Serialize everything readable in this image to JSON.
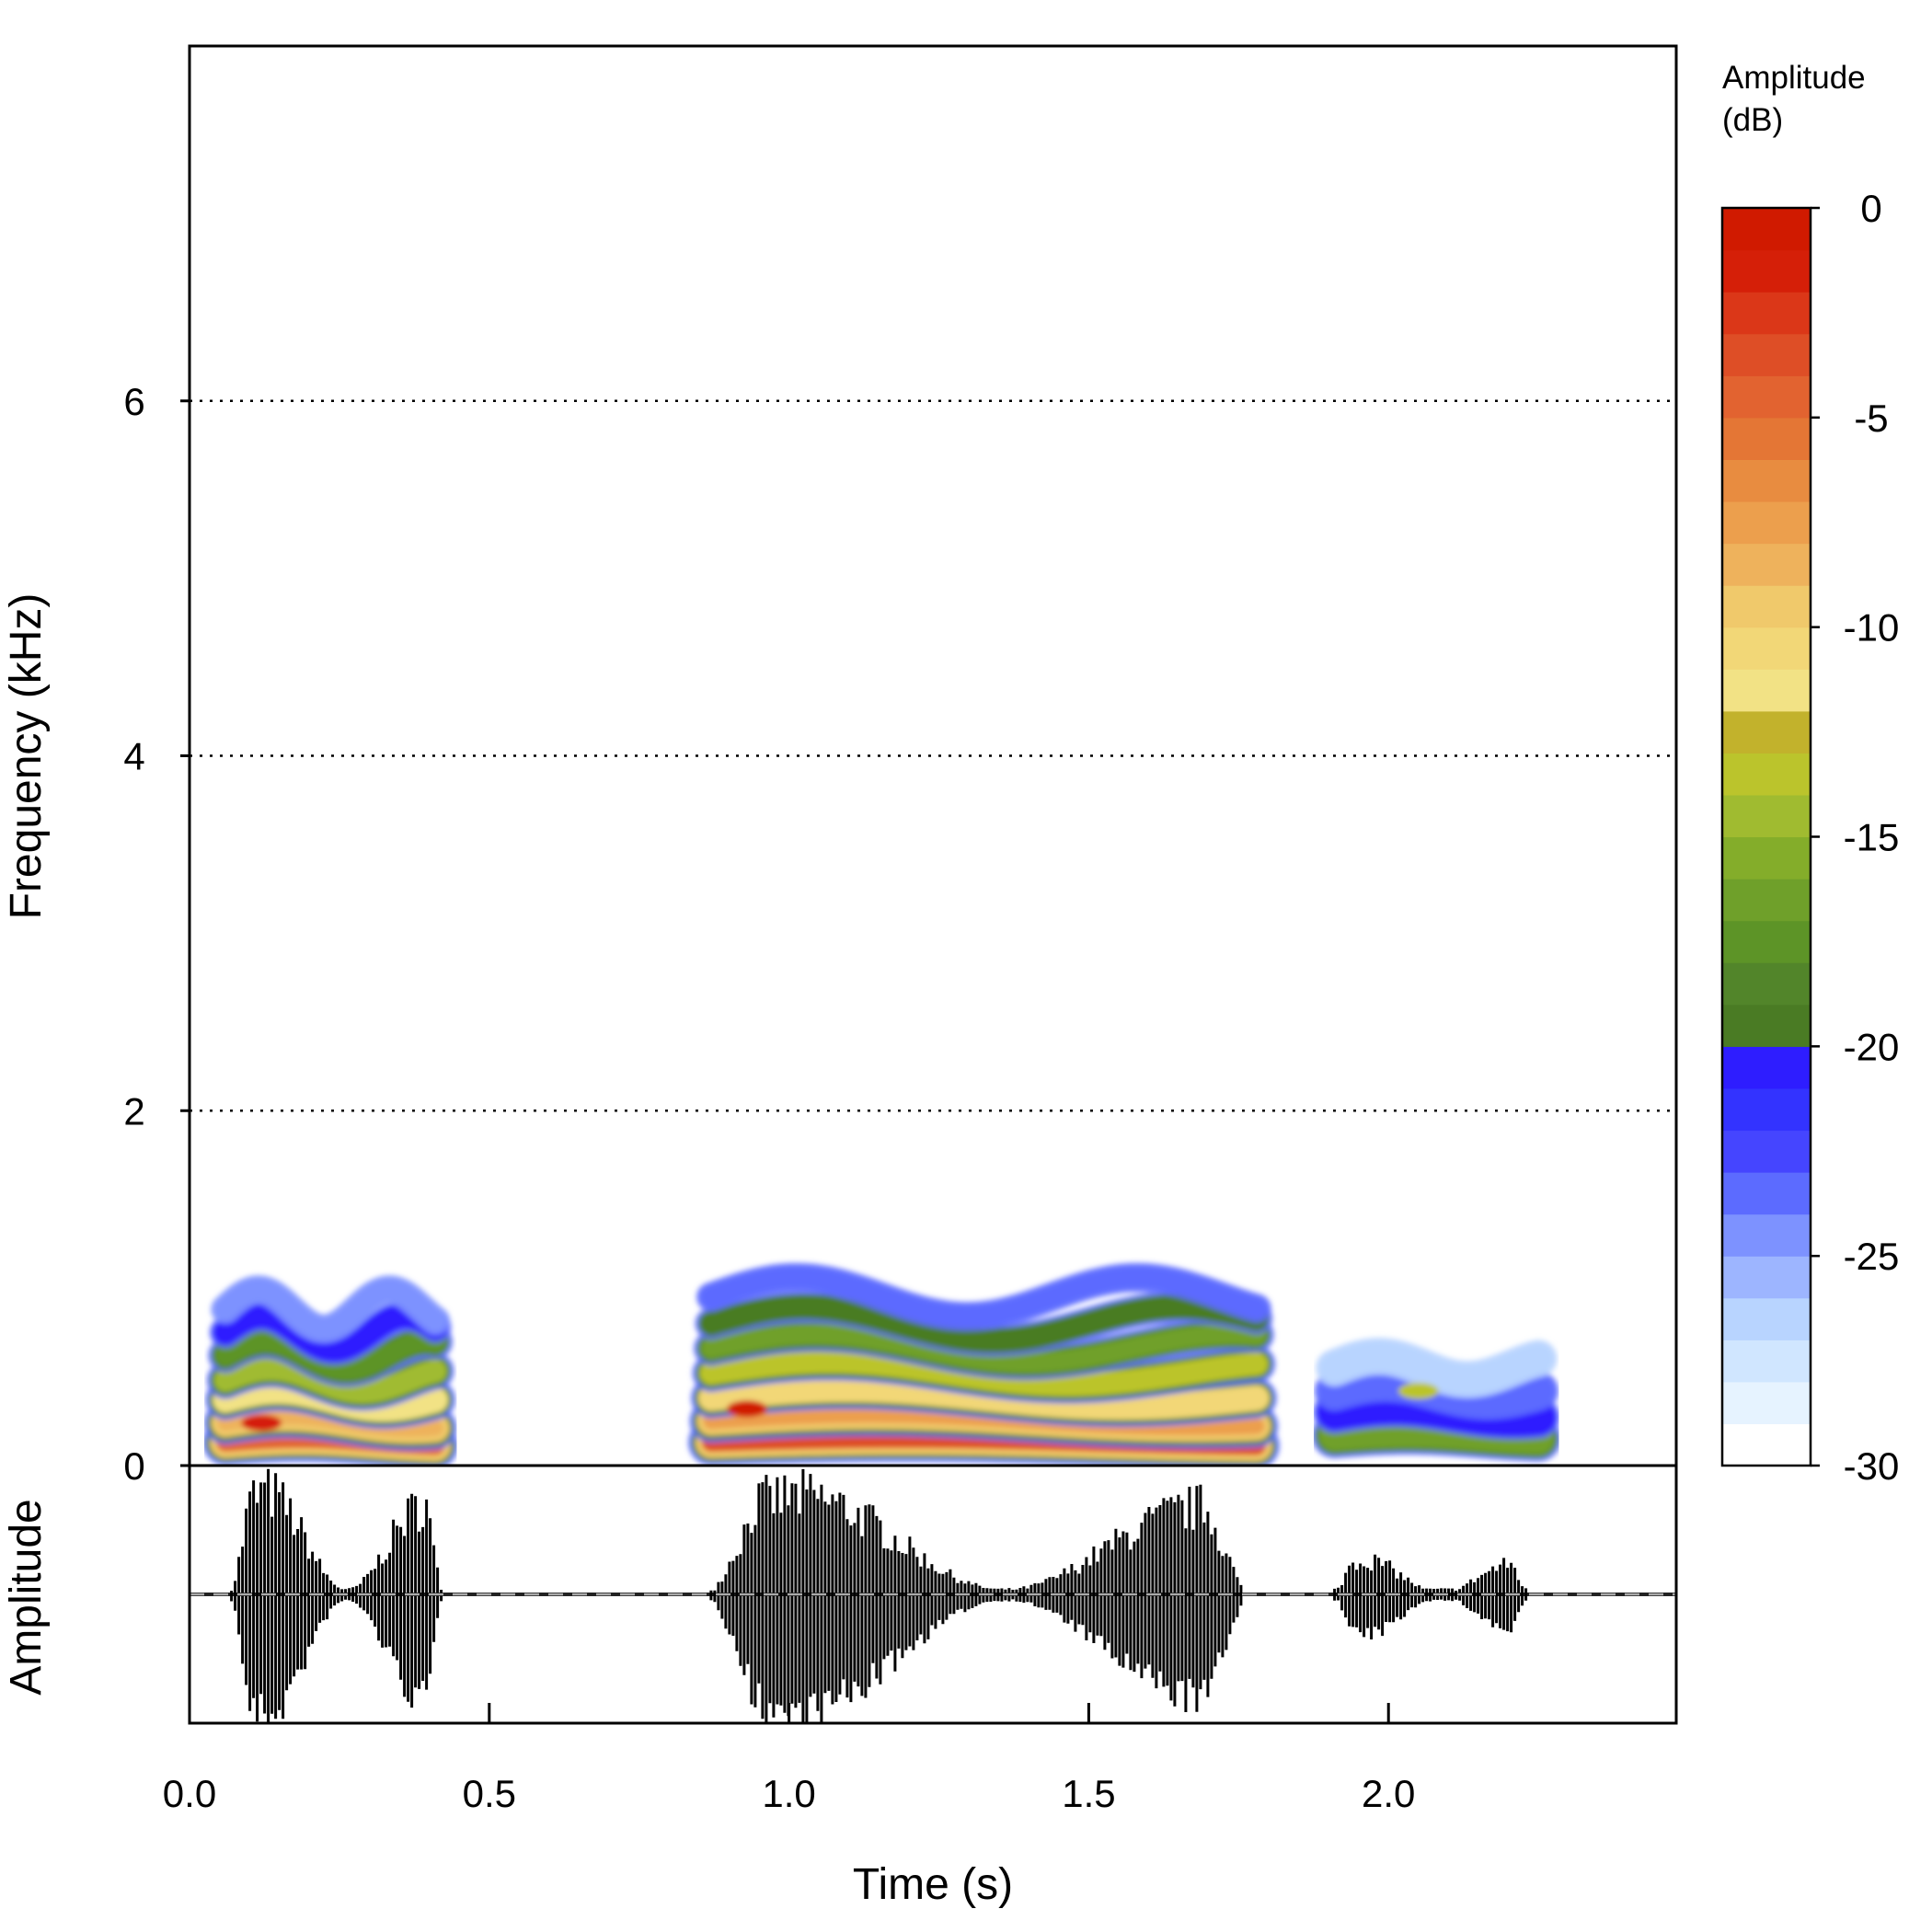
{
  "chart_data": [
    {
      "type": "heatmap",
      "subtype": "spectrogram",
      "title": "",
      "xlabel": "Time (s)",
      "ylabel": "Frequency (kHz)",
      "xlim": [
        0,
        2.48
      ],
      "ylim": [
        0,
        8
      ],
      "x_ticks": [
        "0.0",
        "0.5",
        "1.0",
        "1.5",
        "2.0"
      ],
      "x_tick_values": [
        0,
        0.5,
        1.0,
        1.5,
        2.0
      ],
      "y_ticks": [
        "0",
        "2",
        "4",
        "6"
      ],
      "y_tick_values": [
        0,
        2,
        4,
        6
      ],
      "grid": {
        "horizontal_dotted_at": [
          2,
          4,
          6
        ]
      },
      "segments": [
        {
          "t_start": 0.06,
          "t_end": 0.41,
          "f_min_khz": 0.1,
          "f_max_khz": 1.0,
          "harmonics_khz": [
            0.13,
            0.24,
            0.37,
            0.48,
            0.62,
            0.75,
            0.88
          ],
          "peak_db": -2,
          "peak_time": 0.12,
          "peak_freq_khz": 0.24
        },
        {
          "t_start": 0.87,
          "t_end": 1.78,
          "f_min_khz": 0.1,
          "f_max_khz": 1.0,
          "harmonics_khz": [
            0.13,
            0.25,
            0.38,
            0.52,
            0.66,
            0.8,
            0.95
          ],
          "peak_db": -1,
          "peak_time": 0.93,
          "peak_freq_khz": 0.32
        },
        {
          "t_start": 1.91,
          "t_end": 2.25,
          "f_min_khz": 0.1,
          "f_max_khz": 0.6,
          "harmonics_khz": [
            0.17,
            0.3,
            0.42,
            0.55
          ],
          "peak_db": -14,
          "peak_time": 2.05,
          "peak_freq_khz": 0.42
        }
      ]
    },
    {
      "type": "line",
      "subtype": "waveform",
      "xlabel": "Time (s)",
      "ylabel": "Amplitude",
      "xlim": [
        0,
        2.48
      ],
      "bursts": [
        {
          "t_start": 0.07,
          "t_end": 0.42,
          "peak_env": 0.95
        },
        {
          "t_start": 0.87,
          "t_end": 1.76,
          "peak_env": 0.92
        },
        {
          "t_start": 1.91,
          "t_end": 2.23,
          "peak_env": 0.32
        }
      ],
      "zero_line": "dashed gray"
    }
  ],
  "colorbar": {
    "title_line1": "Amplitude",
    "title_line2": "(dB)",
    "ticks": [
      "0",
      "-5",
      "-10",
      "-15",
      "-20",
      "-25",
      "-30"
    ],
    "tick_values": [
      0,
      -5,
      -10,
      -15,
      -20,
      -25,
      -30
    ],
    "range": [
      -30,
      0
    ],
    "colors": [
      "#ffffff",
      "#e6f3ff",
      "#d0e6ff",
      "#b8d4ff",
      "#9db5ff",
      "#7d92ff",
      "#5c6bff",
      "#4545ff",
      "#3333ff",
      "#2e1dff",
      "#4a7b24",
      "#52852a",
      "#5d9427",
      "#6fa02a",
      "#84ad2a",
      "#a0bb30",
      "#bbc42c",
      "#c2b22c",
      "#f2e285",
      "#f2d777",
      "#f0c96b",
      "#eeb25c",
      "#ec9f4d",
      "#e88c40",
      "#e47635",
      "#e26330",
      "#de4e26",
      "#db3718",
      "#d51f08",
      "#d01a00"
    ]
  }
}
